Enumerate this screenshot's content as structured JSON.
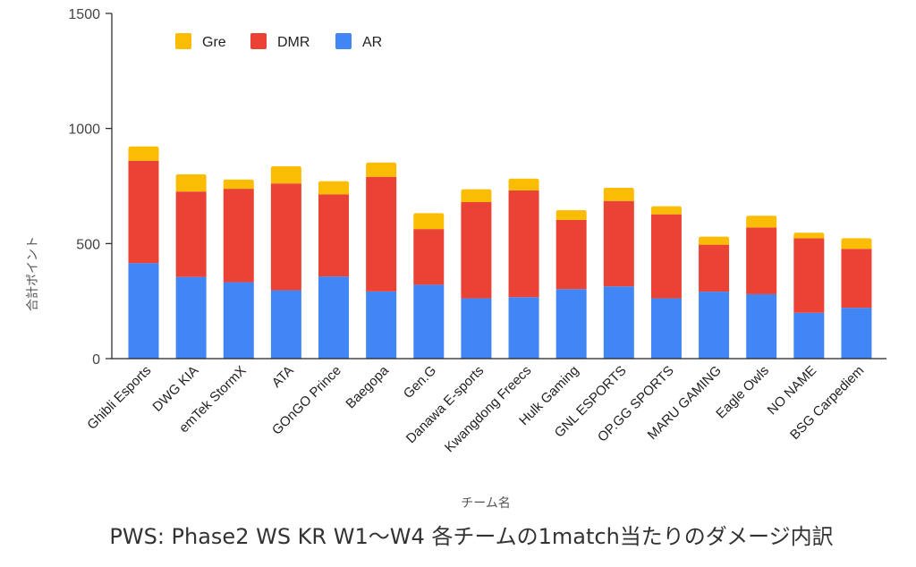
{
  "chart_data": {
    "type": "bar",
    "stacked": true,
    "title": "PWS: Phase2 WS KR W1～W4 各チームの1match当たりのダメージ内訳",
    "xlabel": "チーム名",
    "ylabel": "合計ポイント",
    "ylim": [
      0,
      1500
    ],
    "yticks": [
      0,
      500,
      1000,
      1500
    ],
    "grid": false,
    "legend_position": "top-left",
    "categories": [
      "Ghibli Esports",
      "DWG KIA",
      "emTek StormX",
      "ATA",
      "GOnGO Prince",
      "Baegopa",
      "Gen.G",
      "Danawa E-sports",
      "Kwangdong Freecs",
      "Hulk Gaming",
      "GNL ESPORTS",
      "OP.GG SPORTS",
      "MARU GAMING",
      "Eagle Owls",
      "NO NAME",
      "BSG Carpediem"
    ],
    "series": [
      {
        "name": "AR",
        "color": "#4285F4",
        "values": [
          415,
          355,
          332,
          297,
          357,
          292,
          321,
          262,
          267,
          302,
          314,
          262,
          291,
          280,
          199,
          221
        ]
      },
      {
        "name": "DMR",
        "color": "#EA4335",
        "values": [
          445,
          371,
          406,
          464,
          357,
          498,
          242,
          418,
          464,
          301,
          371,
          365,
          204,
          290,
          324,
          256
        ]
      },
      {
        "name": "Gre",
        "color": "#FBBC04",
        "values": [
          62,
          75,
          40,
          75,
          57,
          62,
          69,
          56,
          51,
          42,
          57,
          35,
          35,
          51,
          24,
          46
        ]
      }
    ],
    "legend_order": [
      "Gre",
      "DMR",
      "AR"
    ]
  }
}
